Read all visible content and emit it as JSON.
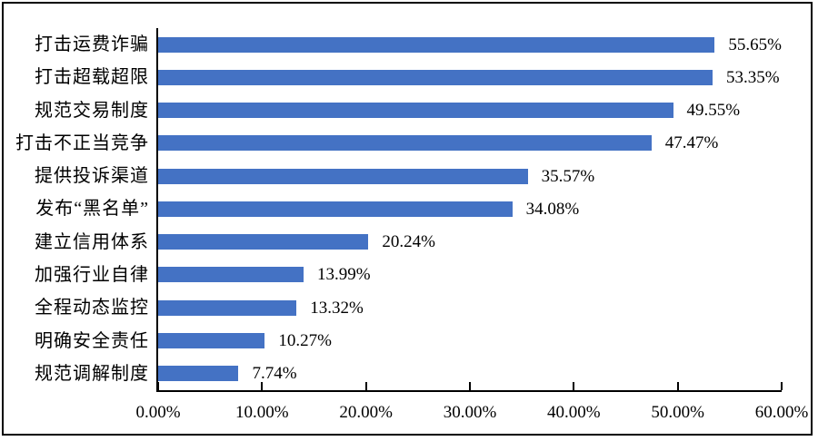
{
  "chart_data": {
    "type": "bar",
    "orientation": "horizontal",
    "title": "",
    "xlabel": "",
    "ylabel": "",
    "xlim": [
      0,
      60
    ],
    "grid": false,
    "legend": false,
    "bar_color": "#4472C4",
    "axis_color": "#000000",
    "categories": [
      "打击运费诈骗",
      "打击超载超限",
      "规范交易制度",
      "打击不正当竞争",
      "提供投诉渠道",
      "发布“黑名单”",
      "建立信用体系",
      "加强行业自律",
      "全程动态监控",
      "明确安全责任",
      "规范调解制度"
    ],
    "values": [
      55.65,
      53.35,
      49.55,
      47.47,
      35.57,
      34.08,
      20.24,
      13.99,
      13.32,
      10.27,
      7.74
    ],
    "value_labels": [
      "55.65%",
      "53.35%",
      "49.55%",
      "47.47%",
      "35.57%",
      "34.08%",
      "20.24%",
      "13.99%",
      "13.32%",
      "10.27%",
      "7.74%"
    ],
    "x_tick_labels": [
      "0.00%",
      "10.00%",
      "20.00%",
      "30.00%",
      "40.00%",
      "50.00%",
      "60.00%"
    ]
  }
}
